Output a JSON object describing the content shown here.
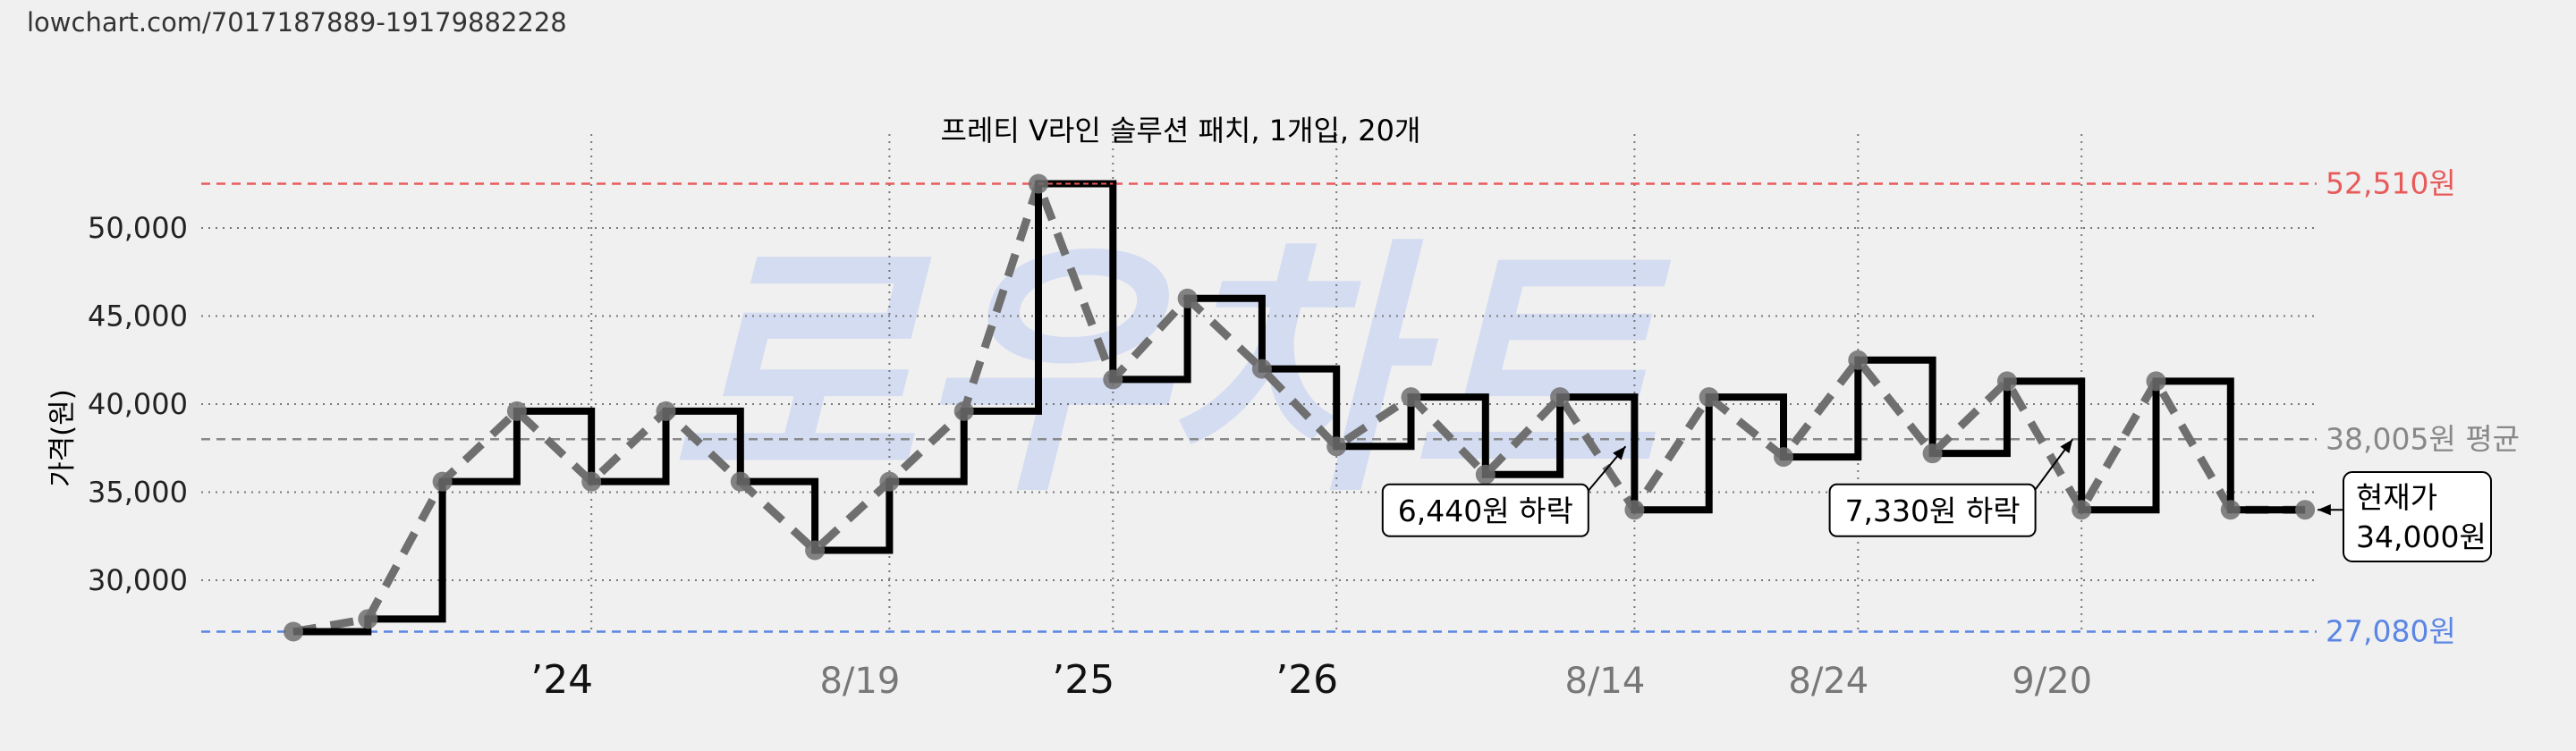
{
  "header": {
    "url": "lowchart.com/7017187889-19179882228"
  },
  "watermark": "로우차트",
  "colors": {
    "background": "#f0f0f0",
    "max_line": "#e85a5a",
    "min_line": "#5b86e5",
    "avg_line": "#888888",
    "step_line": "#000000",
    "trend_line": "#6f6f6f",
    "watermark": "#c9d5f2"
  },
  "chart_data": {
    "type": "line",
    "title": "프레티 V라인 솔루션 패치, 1개입, 20개",
    "ylabel": "가격(원)",
    "xlabel": "",
    "ylim": [
      26000,
      54000
    ],
    "yticks": [
      30000,
      35000,
      40000,
      45000,
      50000
    ],
    "ytick_labels": [
      "30,000",
      "35,000",
      "40,000",
      "45,000",
      "50,000"
    ],
    "xticks": [
      {
        "label": "’24",
        "position": 4,
        "style": "year"
      },
      {
        "label": "8/19",
        "position": 8,
        "style": "date"
      },
      {
        "label": "’25",
        "position": 11,
        "style": "year"
      },
      {
        "label": "’26",
        "position": 14,
        "style": "year"
      },
      {
        "label": "8/14",
        "position": 18,
        "style": "date"
      },
      {
        "label": "8/24",
        "position": 21,
        "style": "date"
      },
      {
        "label": "9/20",
        "position": 24,
        "style": "date"
      }
    ],
    "grid": true,
    "x": [
      0,
      1,
      2,
      3,
      4,
      5,
      6,
      7,
      8,
      9,
      10,
      11,
      12,
      13,
      14,
      15,
      16,
      17,
      18,
      19,
      20,
      21,
      22,
      23,
      24,
      25,
      26,
      27
    ],
    "series": [
      {
        "values": [
          27080,
          27800,
          35600,
          39600,
          35600,
          39600,
          35600,
          31700,
          35600,
          39600,
          52510,
          41400,
          46000,
          42000,
          37600,
          40400,
          36000,
          40400,
          34000,
          40400,
          37000,
          42500,
          37200,
          41300,
          34000,
          41300,
          34000,
          34000
        ]
      }
    ],
    "reference_lines": [
      {
        "label": "52,510원",
        "value": 52510,
        "kind": "max"
      },
      {
        "label": "38,005원 평균",
        "value": 38005,
        "kind": "avg"
      },
      {
        "label": "27,080원",
        "value": 27080,
        "kind": "min"
      }
    ],
    "annotations": [
      {
        "text": "6,440원 하락",
        "x": 16,
        "y": 36000,
        "target_x": 18,
        "target_y": 37600
      },
      {
        "text": "7,330원 하락",
        "x": 22,
        "y": 36000,
        "target_x": 24,
        "target_y": 38000
      }
    ],
    "current_price": {
      "line1": "현재가",
      "line2": "34,000원"
    }
  }
}
